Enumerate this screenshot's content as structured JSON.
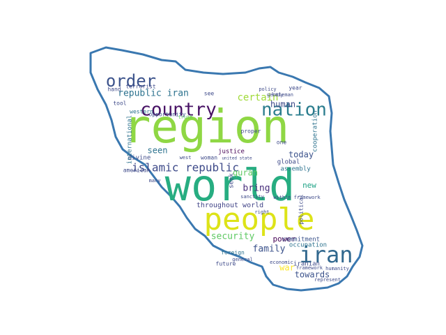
{
  "cloud": {
    "outline_color": "#3a78b0",
    "words": [
      {
        "text": "region",
        "color": "#8fd744",
        "rotate": false
      },
      {
        "text": "world",
        "color": "#27ad81",
        "rotate": false
      },
      {
        "text": "people",
        "color": "#dde318",
        "rotate": false
      },
      {
        "text": "nation",
        "color": "#2b7d8e",
        "rotate": false
      },
      {
        "text": "country",
        "color": "#471164",
        "rotate": false
      },
      {
        "text": "iran",
        "color": "#31688e",
        "rotate": false
      },
      {
        "text": "order",
        "color": "#3b528b",
        "rotate": false
      },
      {
        "text": "islamic republic",
        "color": "#3e4a89",
        "rotate": false
      },
      {
        "text": "security",
        "color": "#5ec962",
        "rotate": false
      },
      {
        "text": "family",
        "color": "#3b528b",
        "rotate": false
      },
      {
        "text": "republic iran",
        "color": "#2c728e",
        "rotate": false
      },
      {
        "text": "certain",
        "color": "#a0da39",
        "rotate": false
      },
      {
        "text": "human",
        "color": "#3e4a89",
        "rotate": false
      },
      {
        "text": "bring",
        "color": "#472d7b",
        "rotate": false
      },
      {
        "text": "quran",
        "color": "#5ec962",
        "rotate": false
      },
      {
        "text": "seen",
        "color": "#2c728e",
        "rotate": false
      },
      {
        "text": "today",
        "color": "#3b528b",
        "rotate": false
      },
      {
        "text": "new",
        "color": "#20a386",
        "rotate": false
      },
      {
        "text": "throughout world",
        "color": "#414487",
        "rotate": false
      },
      {
        "text": "power",
        "color": "#440154",
        "rotate": false
      },
      {
        "text": "towards",
        "color": "#3b528b",
        "rotate": false
      },
      {
        "text": "war",
        "color": "#fde725",
        "rotate": false
      },
      {
        "text": "terrorist",
        "color": "#3e4a89",
        "rotate": false
      },
      {
        "text": "hand",
        "color": "#3e4a89",
        "rotate": false
      },
      {
        "text": "divine",
        "color": "#3e4a89",
        "rotate": false
      },
      {
        "text": "global",
        "color": "#3e4a89",
        "rotate": false
      },
      {
        "text": "assembly",
        "color": "#2c728e",
        "rotate": false
      },
      {
        "text": "commitment",
        "color": "#3b528b",
        "rotate": false
      },
      {
        "text": "occupation",
        "color": "#2c728e",
        "rotate": false
      },
      {
        "text": "iranian",
        "color": "#3e4a89",
        "rotate": false
      },
      {
        "text": "justice",
        "color": "#440154",
        "rotate": false
      },
      {
        "text": "woman",
        "color": "#3e4a89",
        "rotate": false
      },
      {
        "text": "western",
        "color": "#2c728e",
        "rotate": false
      },
      {
        "text": "opportunity",
        "color": "#3b528b",
        "rotate": false
      },
      {
        "text": "year",
        "color": "#3e4a89",
        "rotate": false
      },
      {
        "text": "tool",
        "color": "#3e4a89",
        "rotate": false
      },
      {
        "text": "one",
        "color": "#3e4a89",
        "rotate": false
      },
      {
        "text": "proper",
        "color": "#3e4a89",
        "rotate": false
      },
      {
        "text": "sanctity",
        "color": "#3e4a89",
        "rotate": false
      },
      {
        "text": "foreign",
        "color": "#2c728e",
        "rotate": false
      },
      {
        "text": "future",
        "color": "#3e4a89",
        "rotate": false
      },
      {
        "text": "american",
        "color": "#3e4a89",
        "rotate": false
      },
      {
        "text": "many",
        "color": "#3e4a89",
        "rotate": false
      },
      {
        "text": "see",
        "color": "#3e4a89",
        "rotate": false
      },
      {
        "text": "economic",
        "color": "#3e4a89",
        "rotate": false
      },
      {
        "text": "framework",
        "color": "#3e4a89",
        "rotate": false
      },
      {
        "text": "humanity",
        "color": "#3e4a89",
        "rotate": false
      },
      {
        "text": "general",
        "color": "#3e4a89",
        "rotate": false
      },
      {
        "text": "represent",
        "color": "#3e4a89",
        "rotate": false
      },
      {
        "text": "gentleman",
        "color": "#3e4a89",
        "rotate": false
      },
      {
        "text": "lady",
        "color": "#3e4a89",
        "rotate": false
      },
      {
        "text": "policy",
        "color": "#3e4a89",
        "rotate": false
      },
      {
        "text": "within framework",
        "color": "#3e4a89",
        "rotate": false
      },
      {
        "text": "truth",
        "color": "#5ec962",
        "rotate": false
      },
      {
        "text": "west",
        "color": "#3e4a89",
        "rotate": false
      },
      {
        "text": "united state",
        "color": "#3e4a89",
        "rotate": false
      },
      {
        "text": "right",
        "color": "#3e4a89",
        "rotate": false
      },
      {
        "text": "international",
        "color": "#2c728e",
        "rotate": true
      },
      {
        "text": "cooperation",
        "color": "#2c728e",
        "rotate": true
      },
      {
        "text": "seek",
        "color": "#3e4a89",
        "rotate": true
      },
      {
        "text": "political",
        "color": "#3e4a89",
        "rotate": true
      }
    ]
  }
}
